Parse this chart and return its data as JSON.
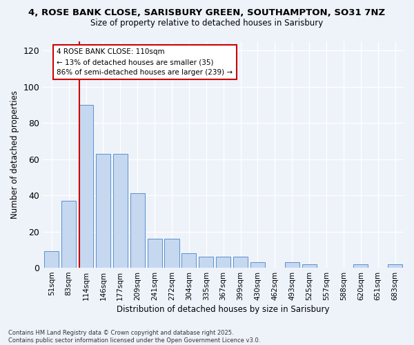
{
  "title_line1": "4, ROSE BANK CLOSE, SARISBURY GREEN, SOUTHAMPTON, SO31 7NZ",
  "title_line2": "Size of property relative to detached houses in Sarisbury",
  "xlabel": "Distribution of detached houses by size in Sarisbury",
  "ylabel": "Number of detached properties",
  "bar_labels": [
    "51sqm",
    "83sqm",
    "114sqm",
    "146sqm",
    "177sqm",
    "209sqm",
    "241sqm",
    "272sqm",
    "304sqm",
    "335sqm",
    "367sqm",
    "399sqm",
    "430sqm",
    "462sqm",
    "493sqm",
    "525sqm",
    "557sqm",
    "588sqm",
    "620sqm",
    "651sqm",
    "683sqm"
  ],
  "bar_values": [
    9,
    37,
    90,
    63,
    63,
    41,
    16,
    16,
    8,
    6,
    6,
    6,
    3,
    0,
    3,
    2,
    0,
    0,
    2,
    0,
    2
  ],
  "bar_color": "#c5d8f0",
  "bar_edge_color": "#5b8fcc",
  "annotation_text": "4 ROSE BANK CLOSE: 110sqm\n← 13% of detached houses are smaller (35)\n86% of semi-detached houses are larger (239) →",
  "vline_x": 1.62,
  "vline_color": "#cc0000",
  "ylim": [
    0,
    125
  ],
  "yticks": [
    0,
    20,
    40,
    60,
    80,
    100,
    120
  ],
  "footer_line1": "Contains HM Land Registry data © Crown copyright and database right 2025.",
  "footer_line2": "Contains public sector information licensed under the Open Government Licence v3.0.",
  "bg_color": "#eef3fa",
  "plot_bg_color": "#eef3fa"
}
